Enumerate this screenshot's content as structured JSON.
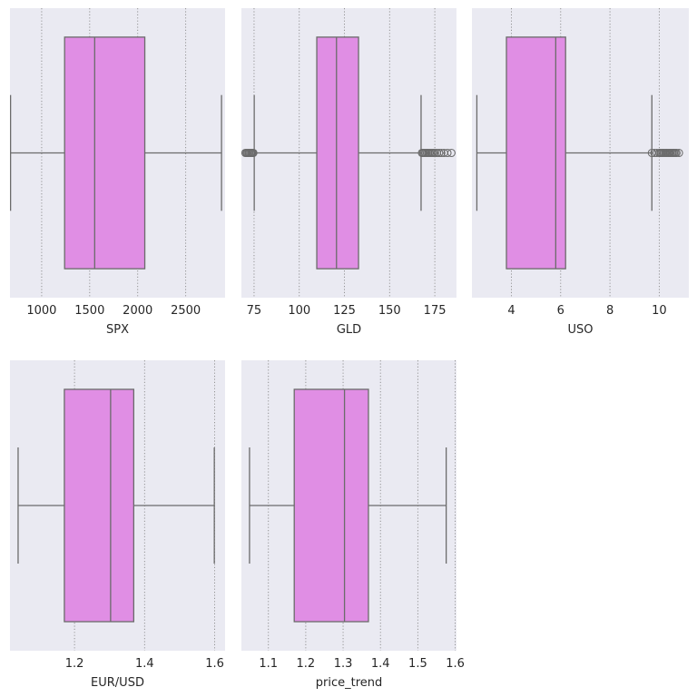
{
  "chart_data": [
    {
      "type": "box",
      "xlabel": "SPX",
      "xlim": [
        670,
        2910
      ],
      "xticks": [
        1000,
        1500,
        2000,
        2500
      ],
      "xtick_labels": [
        "1000",
        "1500",
        "2000",
        "2500"
      ],
      "box": {
        "whisker_low": 676,
        "q1": 1239,
        "median": 1552,
        "q3": 2074,
        "whisker_high": 2873
      },
      "outliers": [],
      "grid": "vertical dotted",
      "box_color": "#e08ee4",
      "line_color": "#6b6b6b",
      "background": "#eaeaf2"
    },
    {
      "type": "box",
      "xlabel": "GLD",
      "xlim": [
        68,
        187
      ],
      "xticks": [
        75,
        100,
        125,
        150,
        175
      ],
      "xtick_labels": [
        "75",
        "100",
        "125",
        "150",
        "175"
      ],
      "box": {
        "whisker_low": 75.1,
        "q1": 109.7,
        "median": 120.6,
        "q3": 132.8,
        "whisker_high": 167.4
      },
      "outliers": [
        70.2,
        70.8,
        71.3,
        71.9,
        72.4,
        73.0,
        73.6,
        74.1,
        74.6,
        167.9,
        168.5,
        169.2,
        169.9,
        170.6,
        171.3,
        172.0,
        172.8,
        173.5,
        174.2,
        175.1,
        176.2,
        177.4,
        178.6,
        180.1,
        182.0,
        184.2
      ],
      "grid": "vertical dotted",
      "box_color": "#e08ee4",
      "line_color": "#6b6b6b",
      "background": "#eaeaf2"
    },
    {
      "type": "box",
      "xlabel": "USO",
      "xlim": [
        2.4,
        11.2
      ],
      "xticks": [
        4,
        6,
        8,
        10
      ],
      "xtick_labels": [
        "4",
        "6",
        "8",
        "10"
      ],
      "box": {
        "whisker_low": 2.6,
        "q1": 3.8,
        "median": 5.8,
        "q3": 6.2,
        "whisker_high": 9.7
      },
      "outliers": [
        9.7,
        9.8,
        9.9,
        10.0,
        10.05,
        10.1,
        10.15,
        10.2,
        10.25,
        10.3,
        10.35,
        10.4,
        10.45,
        10.5,
        10.55,
        10.6,
        10.65,
        10.7,
        10.8
      ],
      "grid": "vertical dotted",
      "box_color": "#e08ee4",
      "line_color": "#6b6b6b",
      "background": "#eaeaf2"
    },
    {
      "type": "box",
      "xlabel": "EUR/USD",
      "xlim": [
        1.0158,
        1.6297
      ],
      "xticks": [
        1.2,
        1.4,
        1.6
      ],
      "xtick_labels": [
        "1.2",
        "1.4",
        "1.6"
      ],
      "box": {
        "whisker_low": 1.039,
        "q1": 1.171,
        "median": 1.303,
        "q3": 1.369,
        "whisker_high": 1.599
      },
      "outliers": [],
      "grid": "vertical dotted",
      "box_color": "#e08ee4",
      "line_color": "#6b6b6b",
      "background": "#eaeaf2"
    },
    {
      "type": "box",
      "xlabel": "price_trend",
      "xlim": [
        1.0278,
        1.6035
      ],
      "xticks": [
        1.1,
        1.2,
        1.3,
        1.4,
        1.5,
        1.6
      ],
      "xtick_labels": [
        "1.1",
        "1.2",
        "1.3",
        "1.4",
        "1.5",
        "1.6"
      ],
      "box": {
        "whisker_low": 1.0495,
        "q1": 1.1692,
        "median": 1.3037,
        "q3": 1.3678,
        "whisker_high": 1.5759
      },
      "outliers": [],
      "grid": "vertical dotted",
      "box_color": "#e08ee4",
      "line_color": "#6b6b6b",
      "background": "#eaeaf2"
    }
  ]
}
